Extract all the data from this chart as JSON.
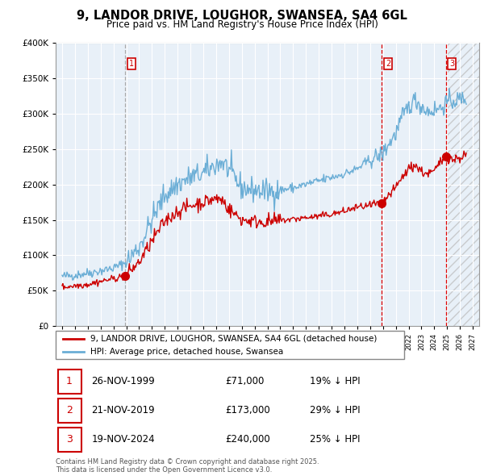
{
  "title": "9, LANDOR DRIVE, LOUGHOR, SWANSEA, SA4 6GL",
  "subtitle": "Price paid vs. HM Land Registry's House Price Index (HPI)",
  "hpi_label": "HPI: Average price, detached house, Swansea",
  "property_label": "9, LANDOR DRIVE, LOUGHOR, SWANSEA, SA4 6GL (detached house)",
  "footer": "Contains HM Land Registry data © Crown copyright and database right 2025.\nThis data is licensed under the Open Government Licence v3.0.",
  "sales": [
    {
      "num": 1,
      "date": "26-NOV-1999",
      "price": 71000,
      "year": 1999.9,
      "pct": "19% ↓ HPI"
    },
    {
      "num": 2,
      "date": "21-NOV-2019",
      "price": 173000,
      "year": 2019.9,
      "pct": "29% ↓ HPI"
    },
    {
      "num": 3,
      "date": "19-NOV-2024",
      "price": 240000,
      "year": 2024.9,
      "pct": "25% ↓ HPI"
    }
  ],
  "ylim": [
    0,
    400000
  ],
  "yticks": [
    0,
    50000,
    100000,
    150000,
    200000,
    250000,
    300000,
    350000,
    400000
  ],
  "xlim": [
    1994.5,
    2027.5
  ],
  "hpi_color": "#6baed6",
  "sale_color": "#cc0000",
  "vline1_color": "#aaaaaa",
  "vline23_color": "#dd0000",
  "bg_color": "#ffffff",
  "chart_bg": "#e8f0f8",
  "grid_color": "#bbccdd",
  "hatch_color": "#cccccc"
}
